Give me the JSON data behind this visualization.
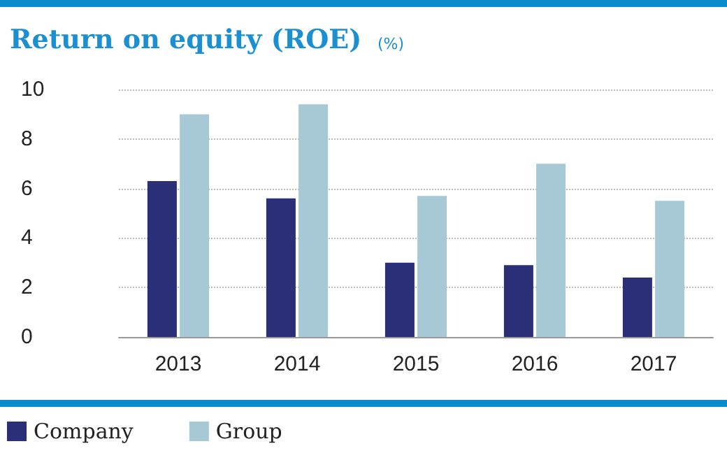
{
  "chart_data": {
    "type": "bar",
    "title": "Return on equity (ROE)",
    "ylabel": "(%)",
    "categories": [
      "2013",
      "2014",
      "2015",
      "2016",
      "2017"
    ],
    "series": [
      {
        "name": "Company",
        "color": "#2b2f77",
        "values": [
          6.3,
          5.6,
          3.0,
          2.9,
          2.4
        ]
      },
      {
        "name": "Group",
        "color": "#a6c9d5",
        "values": [
          9.0,
          9.4,
          5.7,
          7.0,
          5.5
        ]
      }
    ],
    "ylim": [
      0,
      10
    ],
    "yticks": [
      0,
      2,
      4,
      6,
      8,
      10
    ],
    "grid": "y",
    "legend": "bottom left"
  }
}
